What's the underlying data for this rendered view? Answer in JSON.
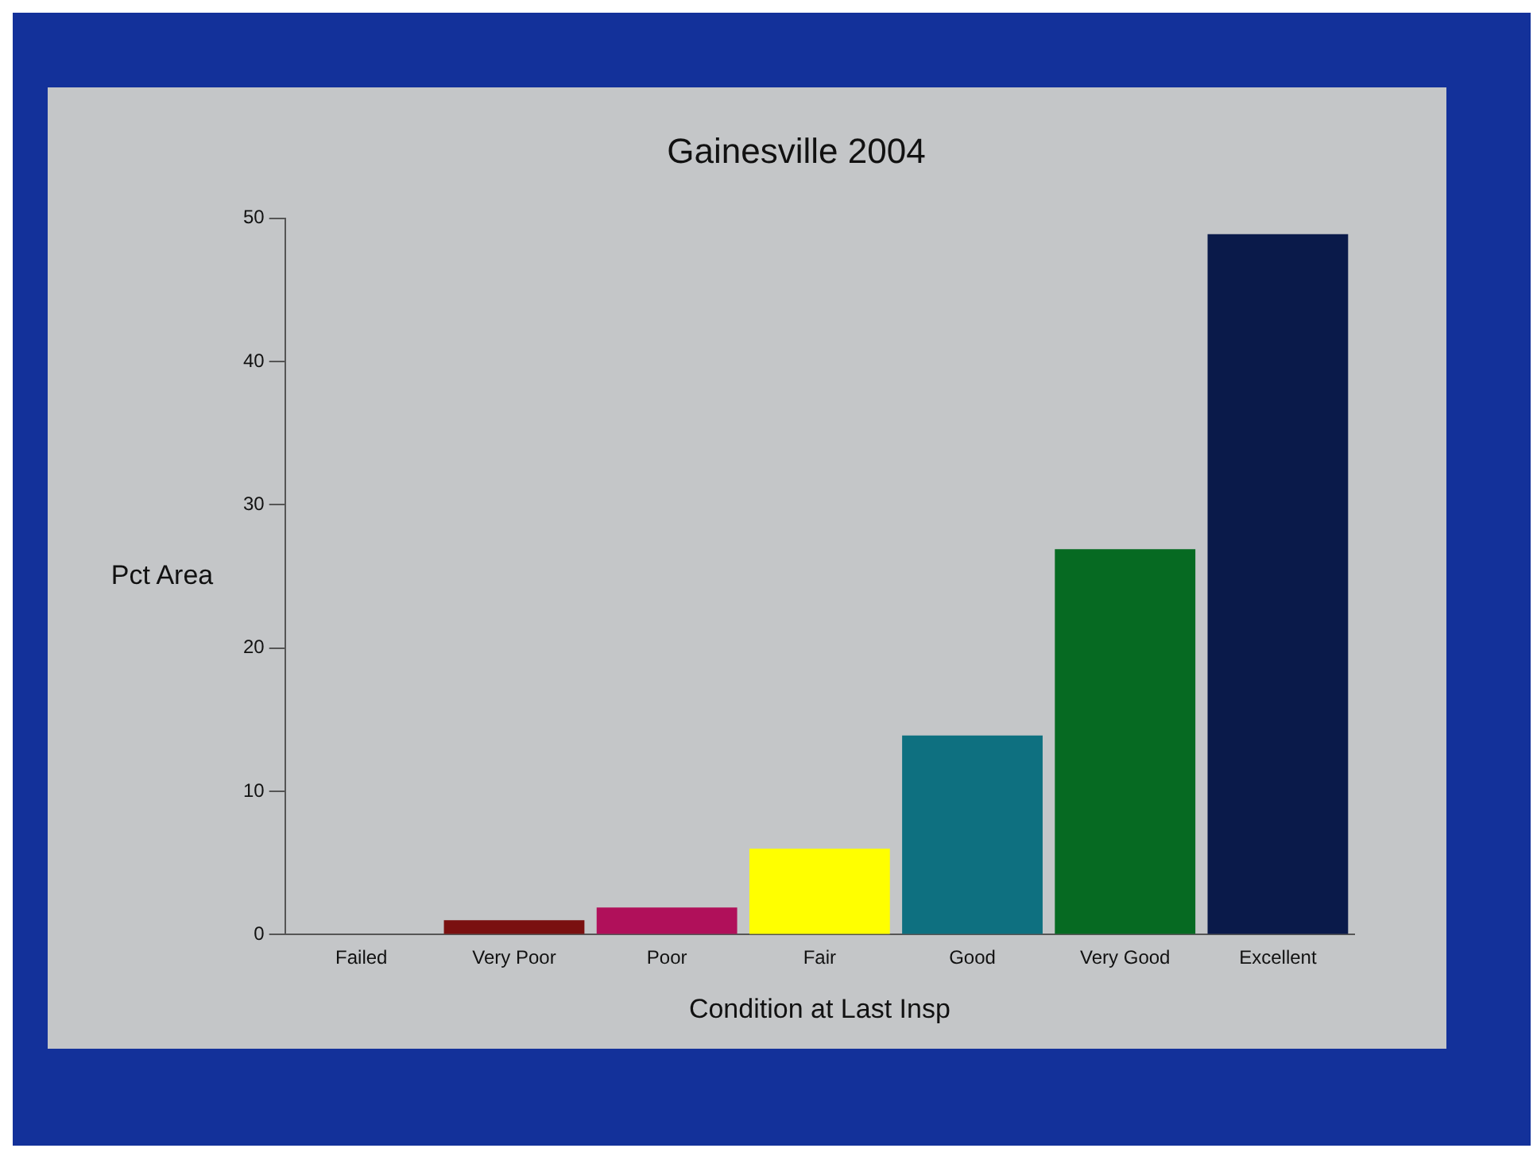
{
  "chart_data": {
    "type": "bar",
    "title": "Gainesville 2004",
    "xlabel": "Condition at Last Insp",
    "ylabel": "Pct Area",
    "categories": [
      "Failed",
      "Very Poor",
      "Poor",
      "Fair",
      "Good",
      "Very Good",
      "Excellent"
    ],
    "values": [
      0,
      1.0,
      1.9,
      6.0,
      13.9,
      26.9,
      48.9
    ],
    "colors": [
      "#7a1010",
      "#7a1010",
      "#b0105a",
      "#ffff00",
      "#0e7080",
      "#066a22",
      "#0a1a4a"
    ],
    "ylim": [
      0,
      50
    ],
    "yticks": [
      0,
      10,
      20,
      30,
      40,
      50
    ],
    "grid": false,
    "legend": false
  }
}
